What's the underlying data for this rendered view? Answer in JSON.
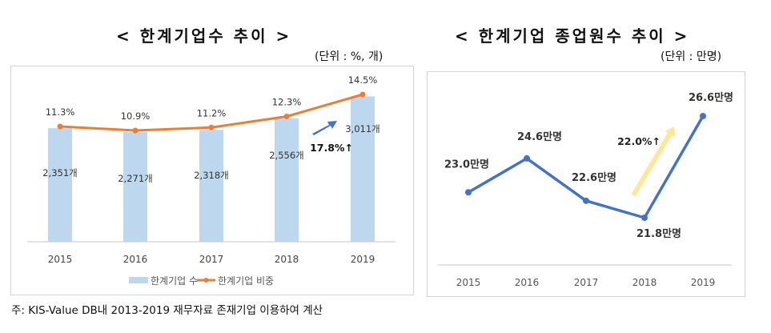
{
  "left": {
    "title": "< 한계기업수 추이 >",
    "unit": "(단위 : %, 개)"
  },
  "right": {
    "title": "< 한계기업 종업원수 추이 >",
    "unit": "(단위 : 만명)"
  },
  "footnote": "주: KIS-Value DB내 2013-2019 재무자료 존재기업 이용하여 계산",
  "chart_data": [
    {
      "type": "bar",
      "title": "한계기업수 추이",
      "categories": [
        "2015",
        "2016",
        "2017",
        "2018",
        "2019"
      ],
      "series": [
        {
          "name": "한계기업 수",
          "type": "bar",
          "color": "#bdd7ee",
          "values": [
            2351,
            2271,
            2318,
            2556,
            3011
          ],
          "labels": [
            "2,351개",
            "2,271개",
            "2,318개",
            "2,556개",
            "3,011개"
          ]
        },
        {
          "name": "한계기업 비중",
          "type": "line",
          "color": "#ed7d31",
          "values": [
            11.3,
            10.9,
            11.2,
            12.3,
            14.5
          ],
          "labels": [
            "11.3%",
            "10.9%",
            "11.2%",
            "12.3%",
            "14.5%"
          ]
        }
      ],
      "annotation": {
        "text": "17.8%↑",
        "arrow_color": "#4472c4"
      },
      "legend": "bottom",
      "grid": false
    },
    {
      "type": "line",
      "title": "한계기업 종업원수 추이",
      "categories": [
        "2015",
        "2016",
        "2017",
        "2018",
        "2019"
      ],
      "series": [
        {
          "name": "한계기업 종업원수",
          "color": "#4472c4",
          "values": [
            23.0,
            24.6,
            22.6,
            21.8,
            26.6
          ],
          "labels": [
            "23.0만명",
            "24.6만명",
            "22.6만명",
            "21.8만명",
            "26.6만명"
          ]
        }
      ],
      "annotation": {
        "text": "22.0%↑",
        "arrow_color": "#ffe699"
      },
      "grid": false
    }
  ]
}
